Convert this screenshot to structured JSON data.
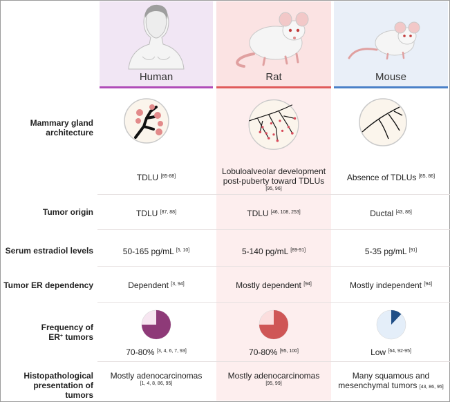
{
  "columns": {
    "human": {
      "label": "Human",
      "accent": "#b04cb8"
    },
    "rat": {
      "label": "Rat",
      "accent": "#e05a5a"
    },
    "mouse": {
      "label": "Mouse",
      "accent": "#4a80c8"
    }
  },
  "rows": {
    "architecture": {
      "label": "Mammary gland architecture",
      "human": {
        "text": "TDLU",
        "ref": "[85-88]"
      },
      "rat": {
        "text": "Lobuloalveolar development post-puberty toward TDLUs",
        "ref": "[95, 96]"
      },
      "mouse": {
        "text": "Absence of TDLUs",
        "ref": "[85, 86]"
      }
    },
    "origin": {
      "label": "Tumor origin",
      "human": {
        "text": "TDLU",
        "ref": "[87, 88]"
      },
      "rat": {
        "text": "TDLU",
        "ref": "[46, 108, 253]"
      },
      "mouse": {
        "text": "Ductal",
        "ref": "[43, 86]"
      }
    },
    "estradiol": {
      "label": "Serum estradiol levels",
      "human": {
        "text": "50-165 pg/mL",
        "ref": "[5, 10]"
      },
      "rat": {
        "text": "5-140 pg/mL",
        "ref": "[89-91]"
      },
      "mouse": {
        "text": "5-35 pg/mL",
        "ref": "[91]"
      }
    },
    "dependency": {
      "label": "Tumor ER dependency",
      "human": {
        "text": "Dependent",
        "ref": "[3, 94]"
      },
      "rat": {
        "text": "Mostly dependent",
        "ref": "[94]"
      },
      "mouse": {
        "text": "Mostly independent",
        "ref": "[94]"
      }
    },
    "frequency": {
      "label_a": "Frequency of",
      "label_b": "ER",
      "label_sup": "+",
      "label_c": " tumors",
      "human": {
        "text": "70-80%",
        "ref": "[3, 4, 6, 7, 93]",
        "fraction": 0.75
      },
      "rat": {
        "text": "70-80%",
        "ref": "[95, 100]",
        "fraction": 0.75
      },
      "mouse": {
        "text": "Low",
        "ref": "[64, 92-95]",
        "fraction": 0.12
      }
    },
    "histo": {
      "label": "Histopathological presentation of tumors",
      "human": {
        "text": "Mostly adenocarcinomas",
        "ref": "[1, 4, 8, 86, 95]"
      },
      "rat": {
        "text": "Mostly adenocarcinomas",
        "ref": "[95, 99]"
      },
      "mouse": {
        "text": "Many squamous and mesenchymal tumors",
        "ref": "[43, 86, 95]"
      }
    }
  },
  "colors": {
    "human_pie": "#8e3a78",
    "human_pie_bg": "#f7e6f1",
    "rat_pie": "#cf5656",
    "rat_pie_bg": "#fbdede",
    "mouse_pie": "#1f4e86",
    "mouse_pie_bg": "#e4eef9"
  }
}
